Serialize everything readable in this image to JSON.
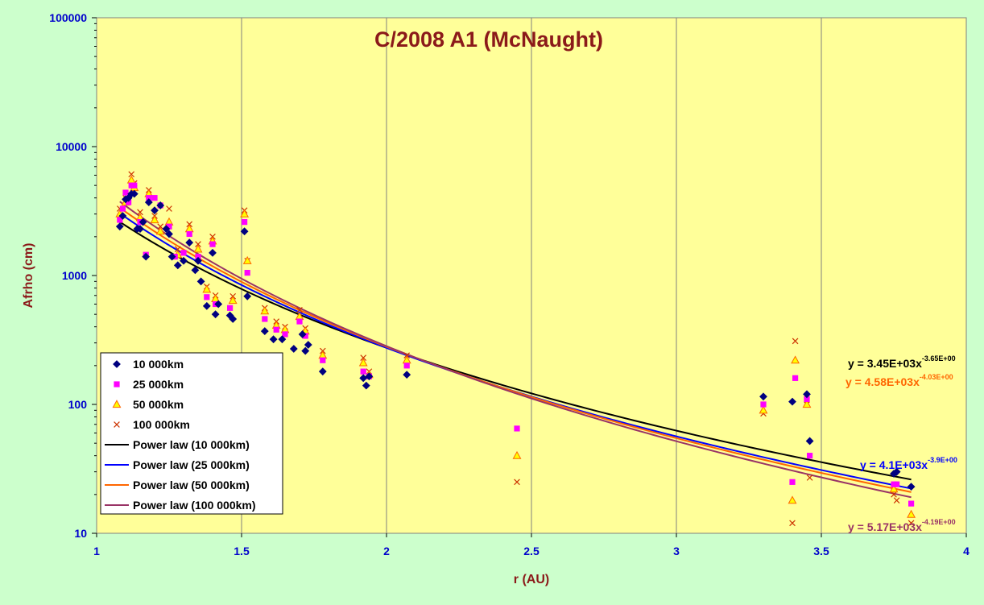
{
  "chart_data": {
    "type": "scatter",
    "title": "C/2008 A1 (McNaught)",
    "xlabel": "r (AU)",
    "ylabel": "Afrho (cm)",
    "xlim": [
      1,
      4
    ],
    "ylim": [
      10,
      100000
    ],
    "y_scale": "log",
    "x_ticks": [
      "1",
      "1.5",
      "2",
      "2.5",
      "3",
      "3.5",
      "4"
    ],
    "y_ticks": [
      "10",
      "100",
      "1000",
      "10000",
      "100000"
    ],
    "grid": {
      "x": true,
      "y": false
    },
    "legend_position": "bottom-left",
    "colors": {
      "background": "#ccffcc",
      "plot_area": "#ffff99",
      "title": "#8b1a1a",
      "tick_labels": "#0000cc",
      "s10k": "#000080",
      "s25k": "#ff00ff",
      "s50k_fill": "#ffff00",
      "s50k_edge": "#ff6600",
      "s100k": "#cc3300",
      "fit10k": "#000000",
      "fit25k": "#0000ff",
      "fit50k": "#ff6600",
      "fit100k": "#993366"
    },
    "series": [
      {
        "name": "10 000km",
        "marker": "diamond",
        "color": "#000080",
        "x": [
          1.08,
          1.09,
          1.1,
          1.11,
          1.12,
          1.13,
          1.14,
          1.15,
          1.16,
          1.17,
          1.18,
          1.2,
          1.22,
          1.24,
          1.25,
          1.26,
          1.28,
          1.3,
          1.32,
          1.34,
          1.35,
          1.36,
          1.38,
          1.4,
          1.41,
          1.42,
          1.46,
          1.47,
          1.51,
          1.52,
          1.58,
          1.61,
          1.64,
          1.68,
          1.71,
          1.72,
          1.73,
          1.78,
          1.92,
          1.93,
          1.94,
          2.07,
          3.3,
          3.4,
          3.45,
          3.46,
          3.75,
          3.76,
          3.81
        ],
        "y": [
          2400,
          2900,
          3900,
          4000,
          4300,
          4300,
          2300,
          2300,
          2600,
          1400,
          3700,
          3200,
          3500,
          2300,
          2100,
          1400,
          1200,
          1300,
          1800,
          1100,
          1300,
          900,
          580,
          1500,
          500,
          600,
          490,
          460,
          2200,
          690,
          370,
          320,
          320,
          270,
          350,
          260,
          290,
          180,
          160,
          140,
          165,
          170,
          115,
          105,
          120,
          52,
          29,
          30,
          23
        ]
      },
      {
        "name": "25 000km",
        "marker": "square",
        "color": "#ff00ff",
        "x": [
          1.08,
          1.09,
          1.1,
          1.11,
          1.12,
          1.13,
          1.15,
          1.17,
          1.18,
          1.2,
          1.22,
          1.25,
          1.27,
          1.3,
          1.32,
          1.35,
          1.38,
          1.4,
          1.41,
          1.46,
          1.51,
          1.52,
          1.58,
          1.62,
          1.65,
          1.7,
          1.72,
          1.78,
          1.92,
          1.94,
          2.07,
          2.45,
          3.3,
          3.4,
          3.41,
          3.45,
          3.46,
          3.75,
          3.76,
          3.81
        ],
        "y": [
          2700,
          3300,
          4400,
          3700,
          5000,
          5000,
          2600,
          1450,
          4000,
          4000,
          3500,
          2400,
          1400,
          1500,
          2100,
          1400,
          680,
          1750,
          600,
          560,
          2600,
          1050,
          460,
          380,
          350,
          440,
          340,
          220,
          180,
          165,
          200,
          65,
          100,
          25,
          160,
          110,
          40,
          24,
          24,
          17
        ]
      },
      {
        "name": "50 000km",
        "marker": "triangle",
        "color": "#ff6600",
        "fill": "#ffff00",
        "x": [
          1.08,
          1.1,
          1.12,
          1.13,
          1.15,
          1.18,
          1.2,
          1.22,
          1.25,
          1.28,
          1.32,
          1.35,
          1.38,
          1.4,
          1.41,
          1.47,
          1.51,
          1.52,
          1.58,
          1.62,
          1.65,
          1.7,
          1.72,
          1.78,
          1.92,
          1.94,
          2.07,
          2.45,
          3.3,
          3.4,
          3.41,
          3.45,
          3.75,
          3.81
        ],
        "y": [
          3000,
          3700,
          5500,
          4800,
          2800,
          4300,
          2700,
          2200,
          2600,
          1450,
          2300,
          1600,
          780,
          1850,
          660,
          640,
          3000,
          1300,
          530,
          410,
          380,
          480,
          370,
          240,
          210,
          170,
          220,
          40,
          90,
          18,
          220,
          100,
          22,
          14
        ]
      },
      {
        "name": "100 000km",
        "marker": "x",
        "color": "#cc3300",
        "x": [
          1.08,
          1.1,
          1.12,
          1.13,
          1.15,
          1.18,
          1.2,
          1.22,
          1.25,
          1.28,
          1.32,
          1.35,
          1.38,
          1.4,
          1.41,
          1.47,
          1.51,
          1.52,
          1.58,
          1.62,
          1.65,
          1.7,
          1.72,
          1.78,
          1.92,
          1.94,
          2.07,
          2.45,
          3.3,
          3.4,
          3.41,
          3.45,
          3.46,
          3.75,
          3.76,
          3.81
        ],
        "y": [
          3300,
          4000,
          6100,
          5200,
          3100,
          4600,
          2900,
          2400,
          3300,
          1600,
          2500,
          1750,
          820,
          2000,
          700,
          690,
          3200,
          1300,
          560,
          440,
          400,
          540,
          390,
          260,
          230,
          180,
          240,
          25,
          85,
          12,
          310,
          100,
          27,
          20,
          18,
          12
        ]
      }
    ],
    "fits": [
      {
        "name": "Power law (10 000km)",
        "color": "#000000",
        "a": 3450,
        "b": -3.65,
        "equation": "y = 3.45E+03x",
        "exponent": "-3.65E+00"
      },
      {
        "name": "Power law (25 000km)",
        "color": "#0000ff",
        "a": 4100,
        "b": -3.9,
        "equation": "y = 4.1E+03x",
        "exponent": "-3.9E+00"
      },
      {
        "name": "Power law (50 000km)",
        "color": "#ff6600",
        "a": 4580,
        "b": -4.03,
        "equation": "y = 4.58E+03x",
        "exponent": "-4.03E+00"
      },
      {
        "name": "Power law (100 000km)",
        "color": "#993366",
        "a": 5170,
        "b": -4.19,
        "equation": "y = 5.17E+03x",
        "exponent": "-4.19E+00"
      }
    ]
  }
}
